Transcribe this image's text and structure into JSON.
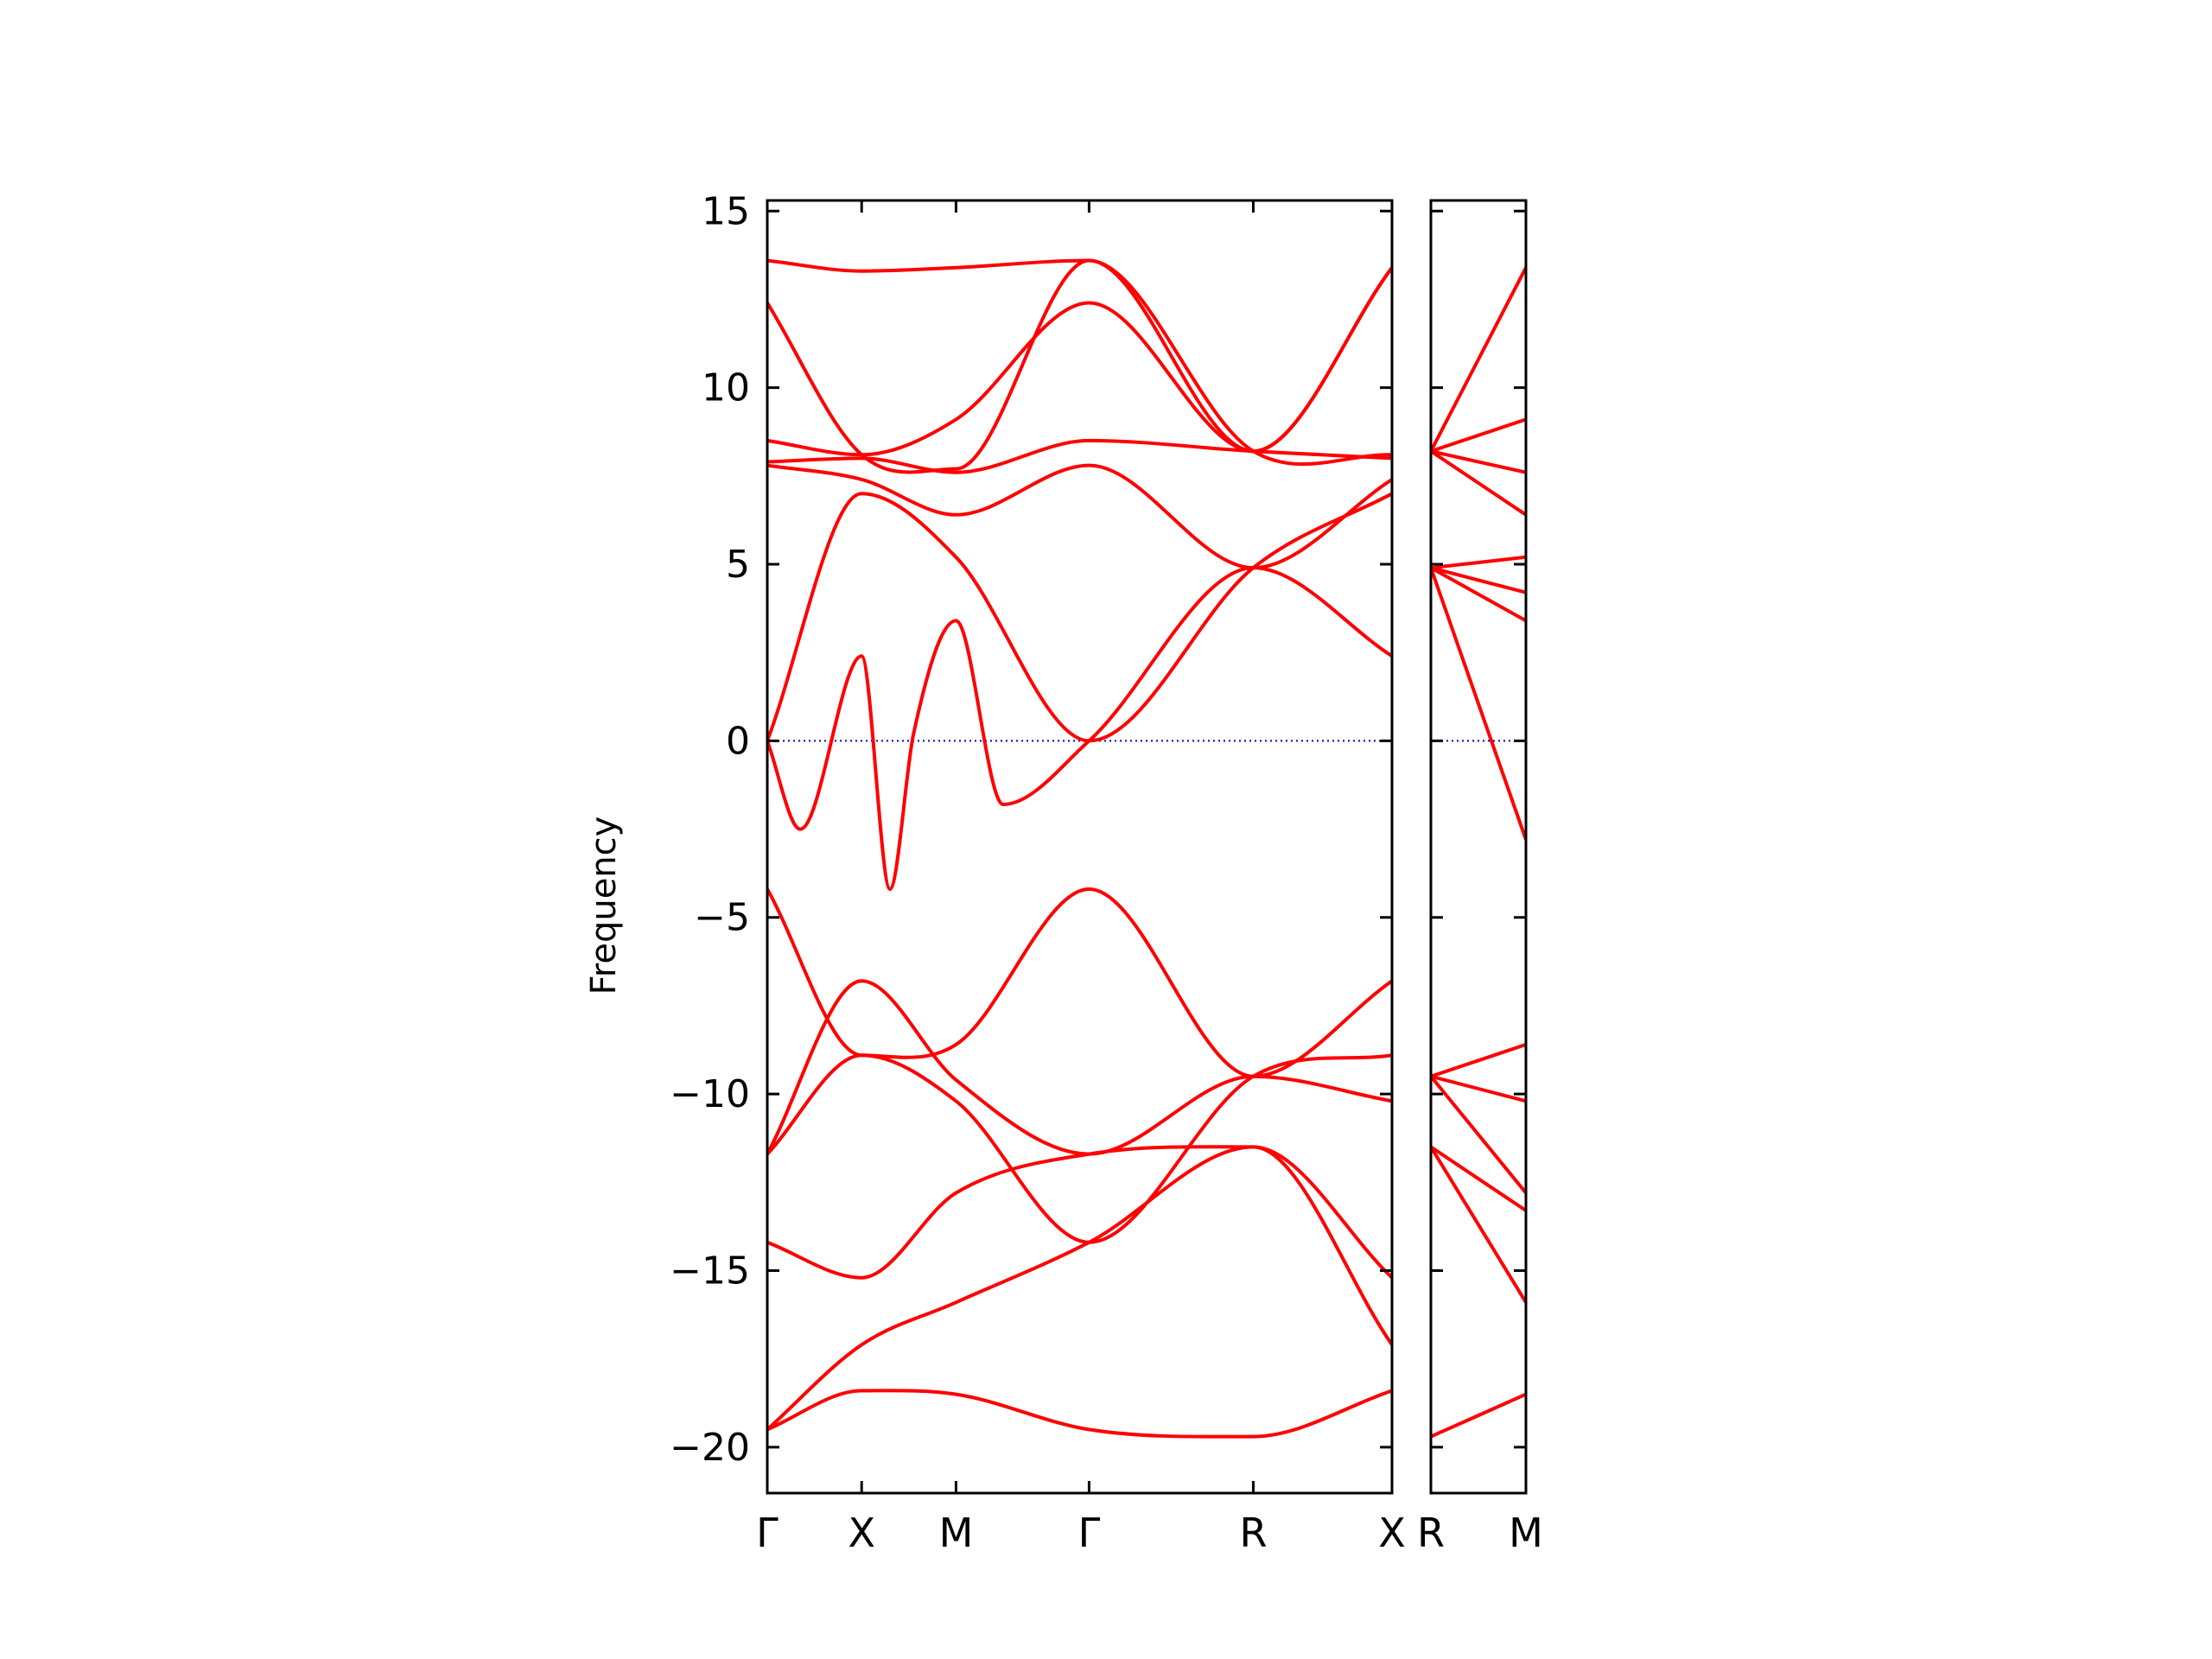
{
  "chart_data": {
    "type": "line",
    "xlabel": "",
    "ylabel": "Frequency",
    "ylim": [
      -21.3,
      15.3
    ],
    "yticks": [
      -20,
      -15,
      -10,
      -5,
      0,
      5,
      10,
      15
    ],
    "ytick_labels": [
      "−20",
      "−15",
      "−10",
      "−5",
      "0",
      "5",
      "10",
      "15"
    ],
    "grid": false,
    "line_color": "#ff0000",
    "zero_line_color": "#0000cc",
    "panels": [
      {
        "path": "Γ-X-M-Γ-R-X",
        "xlim": [
          0,
          6.62
        ],
        "ticks": [
          {
            "x": 0,
            "label": "Γ"
          },
          {
            "x": 1.0,
            "label": "X"
          },
          {
            "x": 2.0,
            "label": "M"
          },
          {
            "x": 3.41,
            "label": "Γ"
          },
          {
            "x": 5.15,
            "label": "R"
          },
          {
            "x": 6.62,
            "label": "X"
          }
        ],
        "series": [
          {
            "x": [
              0,
              1.0,
              2.0,
              3.41,
              5.15,
              6.62
            ],
            "y": [
              -19.5,
              -18.4,
              -18.5,
              -19.5,
              -19.7,
              -18.4
            ]
          },
          {
            "x": [
              0,
              1.0,
              2.0,
              3.41,
              5.15,
              6.62
            ],
            "y": [
              -19.5,
              -17.1,
              -15.9,
              -14.2,
              -11.5,
              -17.1
            ]
          },
          {
            "x": [
              0,
              1.0,
              2.0,
              3.41,
              5.15,
              6.62
            ],
            "y": [
              -14.2,
              -15.2,
              -12.8,
              -11.7,
              -11.5,
              -15.2
            ]
          },
          {
            "x": [
              0,
              1.0,
              2.0,
              3.41,
              5.15,
              6.62
            ],
            "y": [
              -11.7,
              -8.9,
              -10.2,
              -14.2,
              -9.5,
              -8.9
            ]
          },
          {
            "x": [
              0,
              1.0,
              2.0,
              3.41,
              5.15,
              6.62
            ],
            "y": [
              -11.7,
              -6.8,
              -9.6,
              -11.7,
              -9.5,
              -10.2
            ]
          },
          {
            "x": [
              0,
              1.0,
              2.0,
              3.41,
              5.15,
              6.62
            ],
            "y": [
              -4.2,
              -8.9,
              -8.6,
              -4.2,
              -9.5,
              -6.8
            ]
          },
          {
            "x": [
              0,
              0.35,
              1.0,
              1.3,
              1.55,
              2.0,
              2.5,
              3.41,
              5.15,
              6.62
            ],
            "y": [
              0,
              -2.5,
              2.4,
              -4.2,
              0.2,
              3.4,
              -1.8,
              0,
              4.9,
              2.4
            ]
          },
          {
            "x": [
              0,
              1.0,
              2.0,
              3.41,
              5.15,
              6.62
            ],
            "y": [
              0,
              7.0,
              5.2,
              0,
              4.9,
              7.0
            ]
          },
          {
            "x": [
              0,
              1.0,
              2.0,
              3.41,
              5.15,
              6.62
            ],
            "y": [
              7.8,
              7.4,
              6.4,
              7.8,
              4.9,
              7.4
            ]
          },
          {
            "x": [
              0,
              1.0,
              2.0,
              3.41,
              5.15,
              6.62
            ],
            "y": [
              7.9,
              8.0,
              7.6,
              8.5,
              8.2,
              8.0
            ]
          },
          {
            "x": [
              0,
              1.0,
              2.0,
              3.41,
              5.15,
              6.62
            ],
            "y": [
              8.5,
              8.1,
              9.1,
              12.4,
              8.2,
              13.4
            ]
          },
          {
            "x": [
              0,
              1.0,
              2.0,
              3.41,
              5.15,
              6.62
            ],
            "y": [
              12.4,
              8.1,
              7.7,
              13.6,
              8.2,
              13.4
            ]
          },
          {
            "x": [
              0,
              1.0,
              2.0,
              3.41,
              5.15,
              6.62
            ],
            "y": [
              13.6,
              13.3,
              13.4,
              13.6,
              8.2,
              8.1
            ]
          }
        ]
      },
      {
        "path": "R-M",
        "xlim": [
          0,
          1.0
        ],
        "ticks": [
          {
            "x": 0,
            "label": "R"
          },
          {
            "x": 1.0,
            "label": "M"
          }
        ],
        "series": [
          {
            "x": [
              0,
              1.0
            ],
            "y": [
              -19.7,
              -18.5
            ]
          },
          {
            "x": [
              0,
              1.0
            ],
            "y": [
              -11.5,
              -15.9
            ]
          },
          {
            "x": [
              0,
              1.0
            ],
            "y": [
              -11.5,
              -13.3
            ]
          },
          {
            "x": [
              0,
              1.0
            ],
            "y": [
              -9.5,
              -12.8
            ]
          },
          {
            "x": [
              0,
              1.0
            ],
            "y": [
              -9.5,
              -10.2
            ]
          },
          {
            "x": [
              0,
              1.0
            ],
            "y": [
              -9.5,
              -8.6
            ]
          },
          {
            "x": [
              0,
              1.0
            ],
            "y": [
              4.9,
              -2.8
            ]
          },
          {
            "x": [
              0,
              1.0
            ],
            "y": [
              4.9,
              3.4
            ]
          },
          {
            "x": [
              0,
              1.0
            ],
            "y": [
              4.9,
              4.2
            ]
          },
          {
            "x": [
              0,
              1.0
            ],
            "y": [
              4.9,
              5.2
            ]
          },
          {
            "x": [
              0,
              1.0
            ],
            "y": [
              8.2,
              6.4
            ]
          },
          {
            "x": [
              0,
              1.0
            ],
            "y": [
              8.2,
              7.6
            ]
          },
          {
            "x": [
              0,
              1.0
            ],
            "y": [
              8.2,
              9.1
            ]
          },
          {
            "x": [
              0,
              1.0
            ],
            "y": [
              8.2,
              13.4
            ]
          }
        ]
      }
    ]
  }
}
